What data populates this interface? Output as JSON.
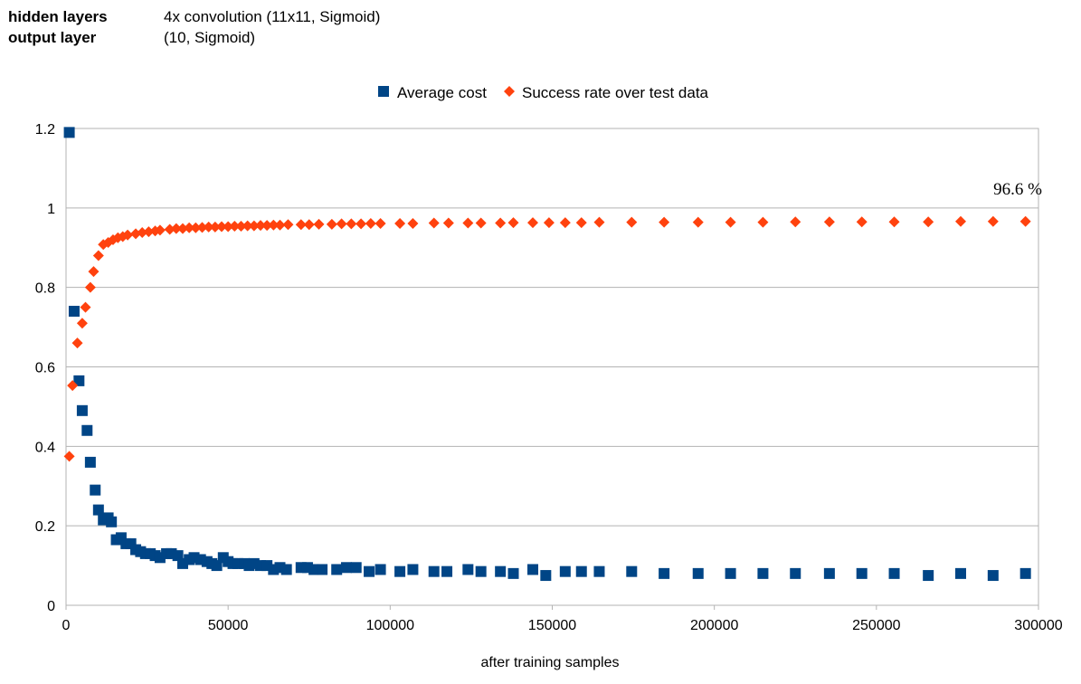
{
  "info": {
    "rows": [
      {
        "key": "hidden layers",
        "value": "4x convolution (11x11, Sigmoid)"
      },
      {
        "key": "output layer",
        "value": "(10, Sigmoid)"
      }
    ]
  },
  "chart_data": {
    "type": "scatter",
    "title": "",
    "xlabel": "after training samples",
    "ylabel": "",
    "xlim": [
      0,
      300000
    ],
    "ylim": [
      0,
      1.2
    ],
    "x_ticks": [
      "0",
      "50000",
      "100000",
      "150000",
      "200000",
      "250000",
      "300000"
    ],
    "y_ticks": [
      "0",
      "0.2",
      "0.4",
      "0.6",
      "0.8",
      "1",
      "1.2"
    ],
    "grid": "horizontal",
    "legend_position": "top",
    "annotation": "96.6 %",
    "series": [
      {
        "name": "Average cost",
        "marker": "square",
        "color": "#004586",
        "x": [
          1000,
          2500,
          4000,
          5000,
          6500,
          7500,
          9000,
          10000,
          11500,
          13000,
          14000,
          15500,
          17000,
          18500,
          20000,
          21500,
          23000,
          24500,
          26000,
          27500,
          29000,
          31000,
          32500,
          34500,
          36000,
          38000,
          39500,
          41500,
          43500,
          45000,
          46500,
          48500,
          50000,
          51500,
          53000,
          55000,
          56500,
          58000,
          60000,
          62000,
          64000,
          66000,
          68000,
          72500,
          74500,
          76500,
          79000,
          83500,
          86500,
          89500,
          93500,
          97000,
          103000,
          107000,
          113500,
          117500,
          124000,
          128000,
          134000,
          138000,
          144000,
          148000,
          154000,
          159000,
          164500,
          174500,
          184500,
          195000,
          205000,
          215000,
          225000,
          235500,
          245500,
          255500,
          266000,
          276000,
          286000,
          296000
        ],
        "y": [
          1.19,
          0.74,
          0.565,
          0.49,
          0.44,
          0.36,
          0.29,
          0.24,
          0.215,
          0.22,
          0.21,
          0.165,
          0.17,
          0.155,
          0.155,
          0.14,
          0.135,
          0.13,
          0.13,
          0.125,
          0.12,
          0.13,
          0.13,
          0.125,
          0.105,
          0.115,
          0.12,
          0.115,
          0.11,
          0.105,
          0.1,
          0.12,
          0.11,
          0.105,
          0.105,
          0.105,
          0.1,
          0.105,
          0.1,
          0.1,
          0.09,
          0.095,
          0.09,
          0.095,
          0.095,
          0.09,
          0.09,
          0.09,
          0.095,
          0.095,
          0.085,
          0.09,
          0.085,
          0.09,
          0.085,
          0.085,
          0.09,
          0.085,
          0.085,
          0.08,
          0.09,
          0.075,
          0.085,
          0.085,
          0.085,
          0.085,
          0.08,
          0.08,
          0.08,
          0.08,
          0.08,
          0.08,
          0.08,
          0.08,
          0.075,
          0.08,
          0.075,
          0.08
        ]
      },
      {
        "name": "Success rate over test data",
        "marker": "diamond",
        "color": "#ff420e",
        "x": [
          1000,
          2000,
          3500,
          5000,
          6000,
          7500,
          8500,
          10000,
          11500,
          13000,
          14500,
          16000,
          17500,
          19000,
          21500,
          23500,
          25500,
          27500,
          29000,
          32000,
          34000,
          36000,
          38000,
          40000,
          42000,
          44000,
          46000,
          48000,
          50000,
          52000,
          54000,
          56000,
          58000,
          60000,
          62000,
          64000,
          66000,
          68500,
          72500,
          75000,
          78000,
          82000,
          85000,
          88000,
          91000,
          94000,
          97000,
          103000,
          107000,
          113500,
          118000,
          124000,
          128000,
          134000,
          138000,
          144000,
          149000,
          154000,
          159000,
          164500,
          174500,
          184500,
          195000,
          205000,
          215000,
          225000,
          235500,
          245500,
          255500,
          266000,
          276000,
          286000,
          296000
        ],
        "y": [
          0.375,
          0.553,
          0.66,
          0.71,
          0.75,
          0.8,
          0.84,
          0.88,
          0.908,
          0.913,
          0.92,
          0.925,
          0.928,
          0.932,
          0.935,
          0.938,
          0.94,
          0.942,
          0.944,
          0.946,
          0.948,
          0.948,
          0.95,
          0.95,
          0.951,
          0.952,
          0.952,
          0.953,
          0.953,
          0.954,
          0.954,
          0.955,
          0.955,
          0.956,
          0.956,
          0.957,
          0.957,
          0.958,
          0.958,
          0.958,
          0.959,
          0.959,
          0.96,
          0.96,
          0.96,
          0.961,
          0.961,
          0.961,
          0.961,
          0.962,
          0.962,
          0.962,
          0.962,
          0.962,
          0.963,
          0.963,
          0.963,
          0.963,
          0.963,
          0.964,
          0.964,
          0.964,
          0.964,
          0.964,
          0.964,
          0.965,
          0.965,
          0.965,
          0.965,
          0.965,
          0.966,
          0.966,
          0.966
        ]
      }
    ]
  }
}
